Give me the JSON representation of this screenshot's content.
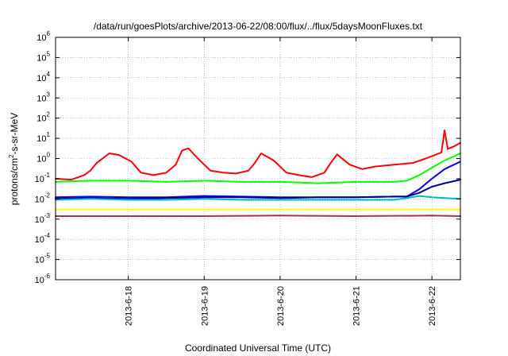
{
  "chart_data": {
    "type": "line",
    "title": "/data/run/goesPlots/archive/2013-06-22/08:00/flux/../flux/5daysMoonFluxes.txt",
    "xlabel": "Coordinated Universal Time (UTC)",
    "ylabel": {
      "pre": "protons/cm",
      "sup": "2",
      "post": "-s-sr-MeV"
    },
    "y_scale": "log",
    "ylim": [
      1e-06,
      1000000.0
    ],
    "y_ticks": [
      {
        "mant": "10",
        "exp": "-6",
        "value": 1e-06
      },
      {
        "mant": "10",
        "exp": "-5",
        "value": 1e-05
      },
      {
        "mant": "10",
        "exp": "-4",
        "value": 0.0001
      },
      {
        "mant": "10",
        "exp": "-3",
        "value": 0.001
      },
      {
        "mant": "10",
        "exp": "-2",
        "value": 0.01
      },
      {
        "mant": "10",
        "exp": "-1",
        "value": 0.1
      },
      {
        "mant": "10",
        "exp": "0",
        "value": 1
      },
      {
        "mant": "10",
        "exp": "1",
        "value": 10
      },
      {
        "mant": "10",
        "exp": "2",
        "value": 100
      },
      {
        "mant": "10",
        "exp": "3",
        "value": 1000
      },
      {
        "mant": "10",
        "exp": "4",
        "value": 10000
      },
      {
        "mant": "10",
        "exp": "5",
        "value": 100000
      },
      {
        "mant": "10",
        "exp": "6",
        "value": 1000000
      }
    ],
    "x_range": [
      "2013-06-17T01:00",
      "2013-06-22T09:00"
    ],
    "x_ticks": [
      {
        "label": "2013-6-18",
        "time": "2013-06-18T00:00"
      },
      {
        "label": "2013-6-19",
        "time": "2013-06-19T00:00"
      },
      {
        "label": "2013-6-20",
        "time": "2013-06-20T00:00"
      },
      {
        "label": "2013-6-21",
        "time": "2013-06-21T00:00"
      },
      {
        "label": "2013-6-22",
        "time": "2013-06-22T00:00"
      }
    ],
    "grid": true,
    "legend": "none",
    "series": [
      {
        "color": "#ff0000",
        "times": [
          "2013-06-17T01:00",
          "2013-06-17T06:00",
          "2013-06-17T10:00",
          "2013-06-17T12:00",
          "2013-06-17T14:00",
          "2013-06-17T18:00",
          "2013-06-17T21:00",
          "2013-06-18T01:00",
          "2013-06-18T04:00",
          "2013-06-18T08:00",
          "2013-06-18T12:00",
          "2013-06-18T15:00",
          "2013-06-18T17:00",
          "2013-06-18T19:00",
          "2013-06-18T22:00",
          "2013-06-19T02:00",
          "2013-06-19T06:00",
          "2013-06-19T10:00",
          "2013-06-19T14:00",
          "2013-06-19T16:00",
          "2013-06-19T18:00",
          "2013-06-19T22:00",
          "2013-06-20T02:00",
          "2013-06-20T06:00",
          "2013-06-20T10:00",
          "2013-06-20T14:00",
          "2013-06-20T16:00",
          "2013-06-20T18:00",
          "2013-06-20T22:00",
          "2013-06-21T02:00",
          "2013-06-21T06:00",
          "2013-06-21T12:00",
          "2013-06-21T18:00",
          "2013-06-21T22:00",
          "2013-06-22T01:00",
          "2013-06-22T03:00",
          "2013-06-22T04:00",
          "2013-06-22T05:00",
          "2013-06-22T07:00",
          "2013-06-22T09:00"
        ],
        "values": [
          0.1,
          0.09,
          0.15,
          0.25,
          0.6,
          1.8,
          1.5,
          0.7,
          0.2,
          0.15,
          0.2,
          0.5,
          2.5,
          3.2,
          1.0,
          0.25,
          0.2,
          0.18,
          0.25,
          0.6,
          1.8,
          0.8,
          0.2,
          0.15,
          0.12,
          0.2,
          0.6,
          1.6,
          0.5,
          0.3,
          0.4,
          0.5,
          0.6,
          1.0,
          1.5,
          2.0,
          25,
          3.0,
          4.0,
          6.0
        ]
      },
      {
        "color": "#00ff00",
        "times": [
          "2013-06-17T01:00",
          "2013-06-17T12:00",
          "2013-06-18T00:00",
          "2013-06-18T12:00",
          "2013-06-19T00:00",
          "2013-06-19T12:00",
          "2013-06-20T00:00",
          "2013-06-20T12:00",
          "2013-06-21T00:00",
          "2013-06-21T12:00",
          "2013-06-21T16:00",
          "2013-06-21T20:00",
          "2013-06-22T00:00",
          "2013-06-22T04:00",
          "2013-06-22T09:00"
        ],
        "values": [
          0.07,
          0.08,
          0.08,
          0.07,
          0.08,
          0.07,
          0.07,
          0.06,
          0.07,
          0.07,
          0.08,
          0.15,
          0.35,
          0.8,
          1.8
        ]
      },
      {
        "color": "#0000ff",
        "times": [
          "2013-06-17T01:00",
          "2013-06-17T12:00",
          "2013-06-18T00:00",
          "2013-06-18T12:00",
          "2013-06-19T00:00",
          "2013-06-19T12:00",
          "2013-06-20T00:00",
          "2013-06-20T12:00",
          "2013-06-21T00:00",
          "2013-06-21T12:00",
          "2013-06-21T16:00",
          "2013-06-21T20:00",
          "2013-06-22T00:00",
          "2013-06-22T04:00",
          "2013-06-22T09:00"
        ],
        "values": [
          0.012,
          0.013,
          0.012,
          0.012,
          0.014,
          0.013,
          0.012,
          0.012,
          0.012,
          0.013,
          0.013,
          0.03,
          0.1,
          0.3,
          0.7
        ]
      },
      {
        "color": "#000099",
        "times": [
          "2013-06-17T01:00",
          "2013-06-17T12:00",
          "2013-06-18T00:00",
          "2013-06-18T12:00",
          "2013-06-19T00:00",
          "2013-06-19T12:00",
          "2013-06-20T00:00",
          "2013-06-20T12:00",
          "2013-06-21T00:00",
          "2013-06-21T12:00",
          "2013-06-21T16:00",
          "2013-06-21T20:00",
          "2013-06-22T00:00",
          "2013-06-22T04:00",
          "2013-06-22T09:00"
        ],
        "values": [
          0.01,
          0.011,
          0.01,
          0.011,
          0.012,
          0.012,
          0.011,
          0.012,
          0.012,
          0.013,
          0.013,
          0.02,
          0.04,
          0.06,
          0.09
        ]
      },
      {
        "color": "#00bbbb",
        "times": [
          "2013-06-17T01:00",
          "2013-06-17T12:00",
          "2013-06-18T00:00",
          "2013-06-18T12:00",
          "2013-06-19T00:00",
          "2013-06-19T12:00",
          "2013-06-20T00:00",
          "2013-06-20T12:00",
          "2013-06-21T00:00",
          "2013-06-21T12:00",
          "2013-06-21T16:00",
          "2013-06-21T20:00",
          "2013-06-22T00:00",
          "2013-06-22T04:00",
          "2013-06-22T09:00"
        ],
        "values": [
          0.009,
          0.01,
          0.009,
          0.009,
          0.01,
          0.009,
          0.009,
          0.009,
          0.009,
          0.009,
          0.011,
          0.014,
          0.012,
          0.011,
          0.01
        ]
      },
      {
        "color": "#ffff00",
        "times": [
          "2013-06-17T01:00",
          "2013-06-18T00:00",
          "2013-06-19T00:00",
          "2013-06-20T00:00",
          "2013-06-21T00:00",
          "2013-06-22T00:00",
          "2013-06-22T09:00"
        ],
        "values": [
          0.003,
          0.003,
          0.003,
          0.003,
          0.003,
          0.003,
          0.003
        ]
      },
      {
        "color": "#993366",
        "times": [
          "2013-06-17T01:00",
          "2013-06-18T00:00",
          "2013-06-19T00:00",
          "2013-06-20T00:00",
          "2013-06-21T00:00",
          "2013-06-22T00:00",
          "2013-06-22T09:00"
        ],
        "values": [
          0.0014,
          0.0014,
          0.0014,
          0.0015,
          0.0014,
          0.0015,
          0.0014
        ]
      }
    ]
  }
}
